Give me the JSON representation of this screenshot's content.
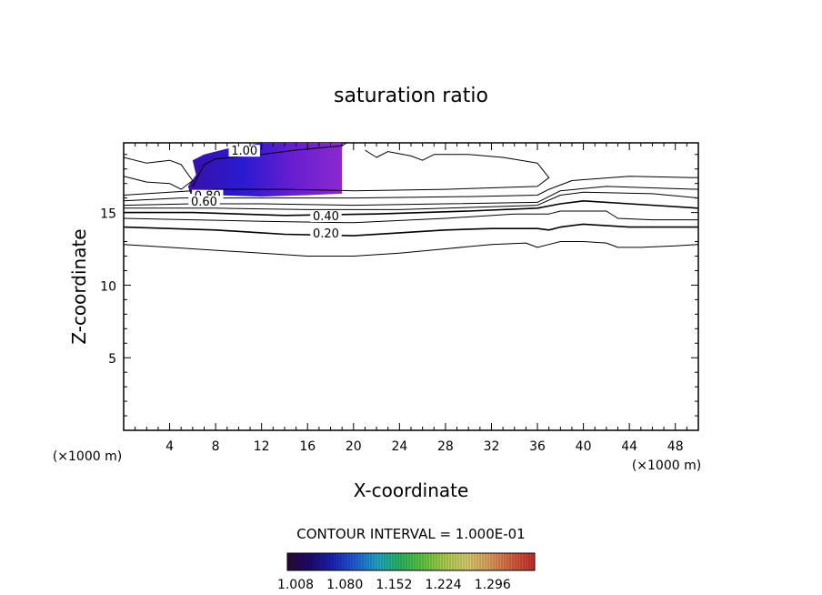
{
  "chart_data": {
    "type": "contour",
    "title": "saturation ratio",
    "xlabel": "X-coordinate",
    "ylabel": "Z-coordinate",
    "x_unit": "(×1000 m)",
    "z_unit": "(×1000 m)",
    "xlim": [
      0,
      50
    ],
    "ylim": [
      0,
      19.8
    ],
    "x_ticks": [
      4,
      8,
      12,
      16,
      20,
      24,
      28,
      32,
      36,
      40,
      44,
      48
    ],
    "y_ticks": [
      5,
      10,
      15
    ],
    "contour_interval_text": "CONTOUR INTERVAL = 1.000E-01",
    "contour_levels": [
      0.1,
      0.2,
      0.3,
      0.4,
      0.5,
      0.6,
      0.7,
      0.8,
      0.9,
      1.0
    ],
    "contour_labels": [
      {
        "text": "1.00",
        "x": 10.5,
        "z": 19.1
      },
      {
        "text": "0.80",
        "x": 7.3,
        "z": 16.0
      },
      {
        "text": "0.60",
        "x": 7.0,
        "z": 15.6
      },
      {
        "text": "0.40",
        "x": 17.6,
        "z": 14.6
      },
      {
        "text": "0.20",
        "x": 17.6,
        "z": 13.4
      }
    ],
    "contour_lines": [
      {
        "level": 0.1,
        "points": [
          [
            0,
            12.8
          ],
          [
            4,
            12.6
          ],
          [
            8,
            12.4
          ],
          [
            12,
            12.2
          ],
          [
            16,
            12.0
          ],
          [
            20,
            12.0
          ],
          [
            24,
            12.2
          ],
          [
            28,
            12.5
          ],
          [
            32,
            12.8
          ],
          [
            35,
            12.9
          ],
          [
            36,
            12.6
          ],
          [
            37,
            12.8
          ],
          [
            38,
            13.0
          ],
          [
            40,
            13.0
          ],
          [
            42,
            12.9
          ],
          [
            43,
            12.6
          ],
          [
            45,
            12.6
          ],
          [
            48,
            12.7
          ],
          [
            50,
            12.8
          ]
        ]
      },
      {
        "level": 0.2,
        "points": [
          [
            0,
            14.0
          ],
          [
            4,
            13.9
          ],
          [
            8,
            13.8
          ],
          [
            12,
            13.6
          ],
          [
            14,
            13.5
          ],
          [
            20,
            13.4
          ],
          [
            24,
            13.6
          ],
          [
            28,
            13.8
          ],
          [
            32,
            13.9
          ],
          [
            36,
            13.9
          ],
          [
            37,
            13.8
          ],
          [
            38,
            14.0
          ],
          [
            40,
            14.2
          ],
          [
            44,
            14.0
          ],
          [
            48,
            14.0
          ],
          [
            50,
            14.0
          ]
        ]
      },
      {
        "level": 0.3,
        "points": [
          [
            0,
            14.6
          ],
          [
            6,
            14.5
          ],
          [
            12,
            14.4
          ],
          [
            20,
            14.3
          ],
          [
            28,
            14.6
          ],
          [
            34,
            14.9
          ],
          [
            37,
            14.9
          ],
          [
            38,
            15.1
          ],
          [
            40,
            15.1
          ],
          [
            42,
            15.1
          ],
          [
            43,
            14.6
          ],
          [
            46,
            14.5
          ],
          [
            50,
            14.5
          ]
        ]
      },
      {
        "level": 0.4,
        "points": [
          [
            0,
            15.0
          ],
          [
            6,
            15.0
          ],
          [
            14,
            14.8
          ],
          [
            22,
            14.9
          ],
          [
            30,
            15.1
          ],
          [
            36,
            15.3
          ],
          [
            38,
            15.6
          ],
          [
            40,
            15.8
          ],
          [
            44,
            15.6
          ],
          [
            50,
            15.3
          ]
        ]
      },
      {
        "level": 0.5,
        "points": [
          [
            0,
            15.3
          ],
          [
            8,
            15.3
          ],
          [
            16,
            15.2
          ],
          [
            24,
            15.2
          ],
          [
            32,
            15.4
          ],
          [
            36,
            15.5
          ],
          [
            38,
            16.2
          ],
          [
            40,
            16.4
          ],
          [
            46,
            16.3
          ],
          [
            50,
            16.0
          ]
        ]
      },
      {
        "level": 0.6,
        "points": [
          [
            0,
            15.5
          ],
          [
            6,
            15.6
          ],
          [
            12,
            15.6
          ],
          [
            20,
            15.5
          ],
          [
            28,
            15.6
          ],
          [
            36,
            15.7
          ],
          [
            38,
            16.5
          ],
          [
            42,
            16.8
          ],
          [
            50,
            16.6
          ]
        ]
      },
      {
        "level": 0.7,
        "points": [
          [
            0,
            15.8
          ],
          [
            5,
            16.0
          ],
          [
            10,
            16.0
          ],
          [
            20,
            16.0
          ],
          [
            30,
            16.1
          ],
          [
            36,
            16.2
          ],
          [
            37,
            16.6
          ],
          [
            39,
            17.2
          ],
          [
            44,
            17.5
          ],
          [
            50,
            17.4
          ]
        ]
      },
      {
        "level": 0.8,
        "points": [
          [
            0,
            16.2
          ],
          [
            4,
            16.4
          ],
          [
            8,
            16.6
          ],
          [
            14,
            16.6
          ],
          [
            20,
            16.5
          ],
          [
            28,
            16.6
          ],
          [
            36,
            16.8
          ],
          [
            37,
            17.4
          ],
          [
            36,
            18.4
          ],
          [
            33,
            18.8
          ],
          [
            30,
            19.0
          ],
          [
            27,
            19.0
          ],
          [
            26,
            18.6
          ],
          [
            25,
            18.9
          ],
          [
            23,
            19.2
          ],
          [
            22,
            18.8
          ],
          [
            21,
            19.3
          ]
        ]
      },
      {
        "level": 0.9,
        "points": [
          [
            0,
            17.5
          ],
          [
            2,
            17.1
          ],
          [
            4,
            17.0
          ],
          [
            5,
            16.6
          ],
          [
            6,
            17.2
          ],
          [
            5,
            18.3
          ],
          [
            4,
            18.6
          ],
          [
            2,
            18.4
          ],
          [
            0,
            18.8
          ]
        ]
      },
      {
        "level": 1.0,
        "points": [
          [
            6,
            16.8
          ],
          [
            7,
            18.3
          ],
          [
            8,
            18.7
          ],
          [
            12,
            19.0
          ],
          [
            15,
            19.3
          ],
          [
            19,
            19.6
          ],
          [
            19.4,
            19.8
          ]
        ]
      }
    ],
    "filled_region": {
      "min": 1.008,
      "max": 1.3,
      "outline": [
        [
          6,
          18.6
        ],
        [
          6.3,
          17.6
        ],
        [
          5.6,
          16.8
        ],
        [
          5.8,
          16.3
        ],
        [
          8,
          16.2
        ],
        [
          12,
          16.1
        ],
        [
          16,
          16.2
        ],
        [
          19,
          16.3
        ],
        [
          19,
          19.8
        ],
        [
          12,
          19.8
        ],
        [
          9,
          19.4
        ],
        [
          7,
          19.0
        ]
      ]
    },
    "colorbar": {
      "ticks": [
        "1.008",
        "1.080",
        "1.152",
        "1.224",
        "1.296"
      ],
      "colors": [
        "#2a0a38",
        "#1e0a6e",
        "#1b22b8",
        "#2060d8",
        "#20a8c8",
        "#2ab860",
        "#60c840",
        "#b0d050",
        "#d8d070",
        "#e0a060",
        "#d86040",
        "#c83030"
      ]
    }
  }
}
